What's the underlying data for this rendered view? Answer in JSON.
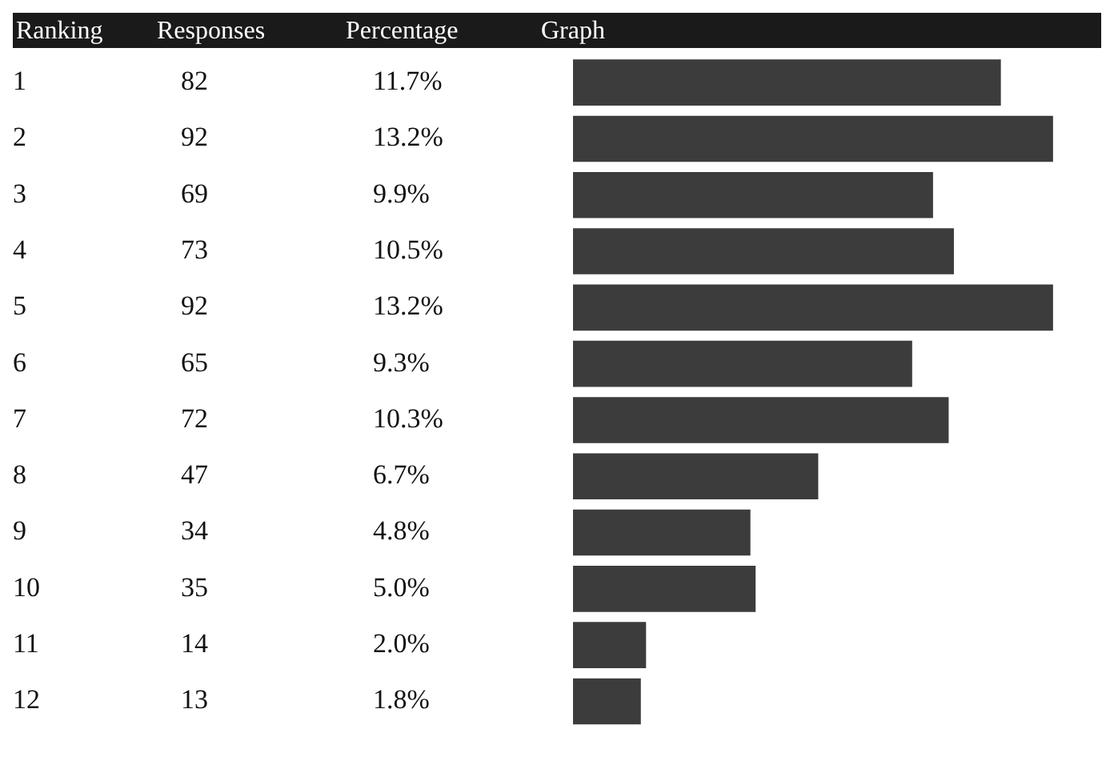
{
  "chart_data": {
    "type": "bar",
    "orientation": "horizontal",
    "ylabel": "Ranking",
    "xlabel": "Graph",
    "categories": [
      "1",
      "2",
      "3",
      "4",
      "5",
      "6",
      "7",
      "8",
      "9",
      "10",
      "11",
      "12"
    ],
    "values": [
      82,
      92,
      69,
      73,
      92,
      65,
      72,
      47,
      34,
      35,
      14,
      13
    ],
    "color": "#3c3c3c",
    "data_labels": true,
    "tick_labels": "y",
    "grid": false,
    "legend": false,
    "annotations": [
      "Responses",
      "Percentage",
      "11.7%",
      "13.2%",
      "9.9%",
      "10.5%",
      "13.2%",
      "9.3%",
      "10.3%",
      "6.7%",
      "4.8%",
      "5.0%",
      "2.0%",
      "1.8%"
    ]
  }
}
